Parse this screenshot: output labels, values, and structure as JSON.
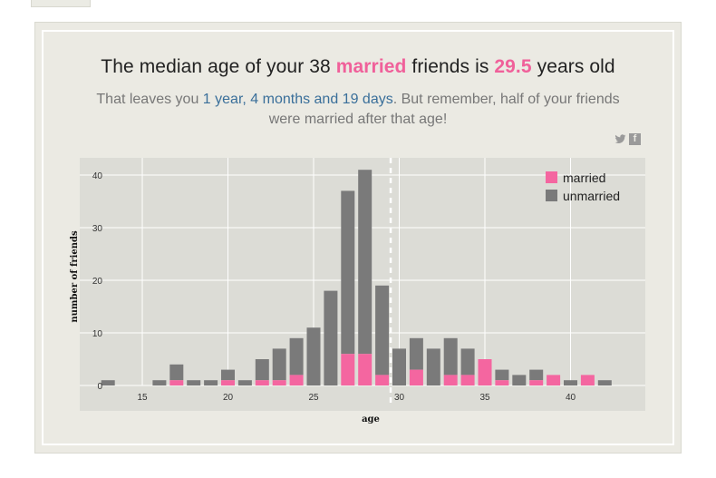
{
  "headline": {
    "prefix": "The median age of your ",
    "count": "38",
    "status": "married",
    "middle": " friends is ",
    "median": "29.5",
    "suffix": " years old"
  },
  "subline": {
    "prefix": "That leaves you ",
    "time_left": "1 year, 4 months and 19 days",
    "suffix": ". But remember, half of your friends were married after that age!"
  },
  "share": {
    "twitter_icon": "twitter-icon",
    "facebook_icon": "facebook-icon"
  },
  "chart_data": {
    "type": "bar",
    "stacked": true,
    "xlabel": "age",
    "ylabel": "number of friends",
    "xlim": [
      13,
      43
    ],
    "ylim": [
      0,
      43
    ],
    "x_ticks": [
      15,
      20,
      25,
      30,
      35,
      40
    ],
    "y_ticks": [
      0,
      10,
      20,
      30,
      40
    ],
    "grid": true,
    "legend_position": "top-right",
    "median_line": 29.5,
    "colors": {
      "married": "#f466a0",
      "unmarried": "#7a7a7a",
      "plot_bg": "#dcdcd6"
    },
    "ages": [
      13,
      16,
      17,
      18,
      19,
      20,
      21,
      22,
      23,
      24,
      25,
      26,
      27,
      28,
      29,
      30,
      31,
      32,
      33,
      34,
      35,
      36,
      37,
      38,
      39,
      40,
      41,
      42
    ],
    "series": [
      {
        "name": "married",
        "values": [
          0,
          0,
          1,
          0,
          0,
          1,
          0,
          1,
          1,
          2,
          0,
          0,
          6,
          6,
          2,
          0,
          3,
          0,
          2,
          2,
          5,
          1,
          0,
          1,
          2,
          0,
          2,
          0
        ]
      },
      {
        "name": "unmarried",
        "values": [
          1,
          1,
          3,
          1,
          1,
          2,
          1,
          4,
          6,
          7,
          11,
          18,
          31,
          35,
          17,
          7,
          6,
          7,
          7,
          5,
          0,
          2,
          2,
          2,
          0,
          1,
          0,
          1
        ]
      }
    ]
  }
}
